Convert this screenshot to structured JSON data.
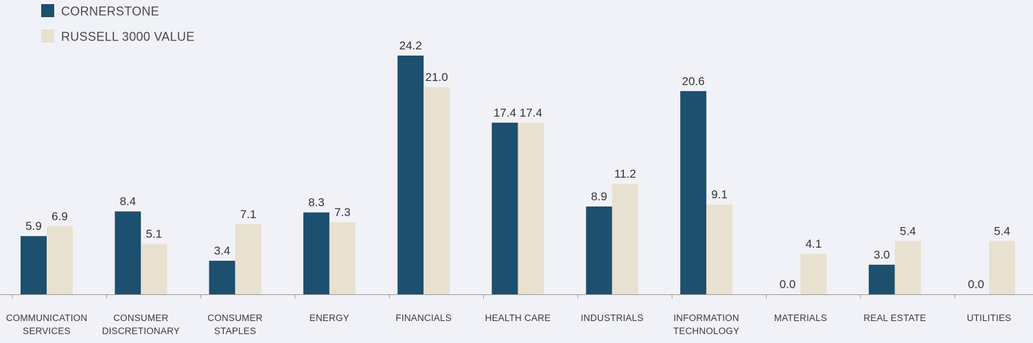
{
  "chart_data": {
    "type": "bar",
    "categories": [
      "COMMUNICATION SERVICES",
      "CONSUMER DISCRETIONARY",
      "CONSUMER STAPLES",
      "ENERGY",
      "FINANCIALS",
      "HEALTH CARE",
      "INDUSTRIALS",
      "INFORMATION TECHNOLOGY",
      "MATERIALS",
      "REAL ESTATE",
      "UTILITIES"
    ],
    "category_label_lines": [
      [
        "COMMUNICATION",
        "SERVICES"
      ],
      [
        "CONSUMER",
        "DISCRETIONARY"
      ],
      [
        "CONSUMER",
        "STAPLES"
      ],
      [
        "ENERGY"
      ],
      [
        "FINANCIALS"
      ],
      [
        "HEALTH CARE"
      ],
      [
        "INDUSTRIALS"
      ],
      [
        "INFORMATION",
        "TECHNOLOGY"
      ],
      [
        "MATERIALS"
      ],
      [
        "REAL ESTATE"
      ],
      [
        "UTILITIES"
      ]
    ],
    "series": [
      {
        "name": "CORNERSTONE",
        "color": "#1d4f6e",
        "values": [
          5.9,
          8.4,
          3.4,
          8.3,
          24.2,
          17.4,
          8.9,
          20.6,
          0.0,
          3.0,
          0.0
        ],
        "labels": [
          "5.9",
          "8.4",
          "3.4",
          "8.3",
          "24.2",
          "17.4",
          "8.9",
          "20.6",
          "0.0",
          "3.0",
          "0.0"
        ]
      },
      {
        "name": "RUSSELL 3000 VALUE",
        "color": "#e8e1cf",
        "values": [
          6.9,
          5.1,
          7.1,
          7.3,
          21.0,
          17.4,
          11.2,
          9.1,
          4.1,
          5.4,
          5.4
        ],
        "labels": [
          "6.9",
          "5.1",
          "7.1",
          "7.3",
          "21.0",
          "17.4",
          "11.2",
          "9.1",
          "4.1",
          "5.4",
          "5.4"
        ]
      }
    ],
    "title": "",
    "xlabel": "",
    "ylabel": "",
    "ylim": [
      0,
      24.2
    ],
    "grid": false,
    "legend": "top-left",
    "axis_color": "#9a9a9a"
  }
}
